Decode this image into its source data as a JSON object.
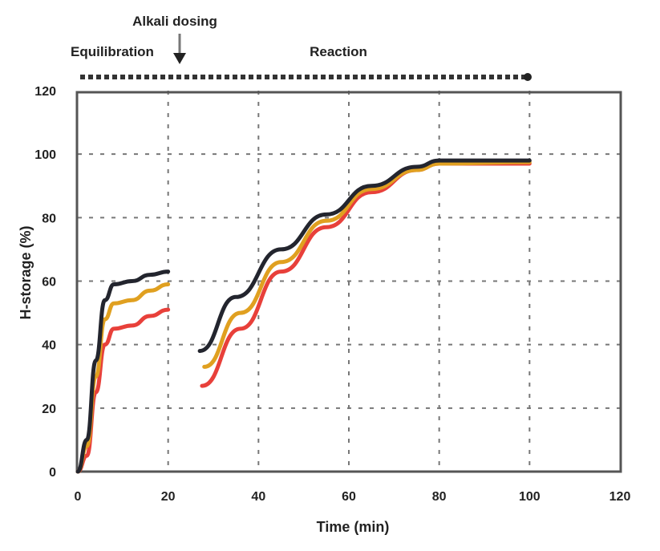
{
  "chart_data": {
    "type": "line",
    "title": "",
    "xlabel": "Time (min)",
    "ylabel": "H-storage (%)",
    "xlim": [
      0,
      120
    ],
    "ylim": [
      0,
      120
    ],
    "xticks": [
      "0",
      "20",
      "40",
      "60",
      "80",
      "100",
      "120"
    ],
    "yticks": [
      "0",
      "20",
      "40",
      "60",
      "80",
      "100",
      "120"
    ],
    "grid": true,
    "annotations": {
      "left_phase": "Equilibration",
      "event": "Alkali dosing",
      "right_phase": "Reaction"
    },
    "colors": {
      "black": "#23252e",
      "orange": "#e0a020",
      "red": "#e8403a"
    },
    "series": [
      {
        "color": "#23252e",
        "segments": [
          [
            [
              0,
              0
            ],
            [
              2,
              10
            ],
            [
              4,
              35
            ],
            [
              6,
              54
            ],
            [
              8,
              59
            ],
            [
              12,
              60
            ],
            [
              16,
              62
            ],
            [
              20,
              63
            ]
          ],
          [
            [
              27,
              38
            ],
            [
              35,
              55
            ],
            [
              45,
              70
            ],
            [
              55,
              81
            ],
            [
              65,
              90
            ],
            [
              75,
              96
            ],
            [
              80,
              98
            ],
            [
              100,
              98
            ]
          ]
        ]
      },
      {
        "color": "#e0a020",
        "segments": [
          [
            [
              0,
              0
            ],
            [
              2,
              8
            ],
            [
              4,
              30
            ],
            [
              6,
              48
            ],
            [
              8,
              53
            ],
            [
              12,
              54
            ],
            [
              16,
              57
            ],
            [
              20,
              59
            ]
          ],
          [
            [
              28,
              33
            ],
            [
              36,
              50
            ],
            [
              45,
              66
            ],
            [
              55,
              79
            ],
            [
              65,
              89
            ],
            [
              75,
              95
            ],
            [
              80,
              97
            ],
            [
              100,
              97.5
            ]
          ]
        ]
      },
      {
        "color": "#e8403a",
        "segments": [
          [
            [
              0,
              0
            ],
            [
              2,
              5
            ],
            [
              4,
              25
            ],
            [
              6,
              40
            ],
            [
              8,
              45
            ],
            [
              12,
              46
            ],
            [
              16,
              49
            ],
            [
              20,
              51
            ]
          ],
          [
            [
              27.5,
              27
            ],
            [
              36,
              45
            ],
            [
              45,
              63
            ],
            [
              55,
              77
            ],
            [
              65,
              88
            ],
            [
              75,
              95
            ],
            [
              80,
              97
            ],
            [
              100,
              97
            ]
          ]
        ]
      }
    ]
  }
}
